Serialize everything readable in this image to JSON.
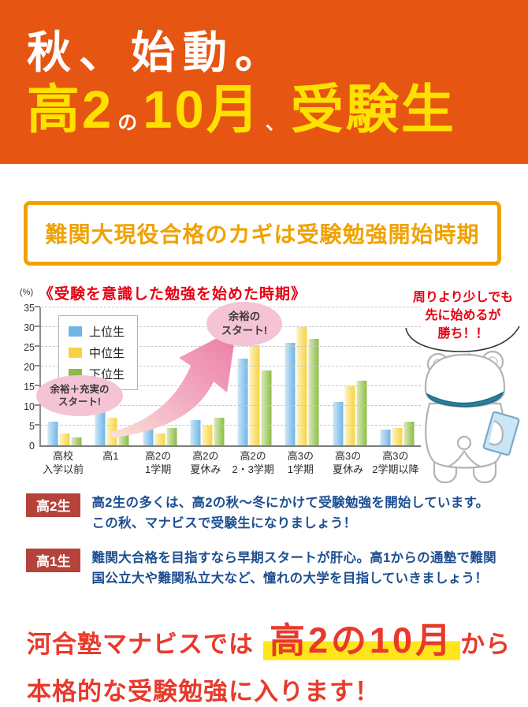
{
  "header": {
    "line1": "秋、始動。",
    "line2": {
      "p1": "高2",
      "p2": "の",
      "p3": "10月",
      "p4": "、",
      "p5": "受験生"
    },
    "bg_color": "#E75512",
    "accent_yellow": "#FFE100"
  },
  "banner": {
    "text": "難関大現役合格のカギは受験勉強開始時期",
    "color": "#F0A202"
  },
  "chart_data": {
    "type": "bar",
    "title": "《受験を意識した勉強を始めた時期》",
    "unit_label": "(%)",
    "categories": [
      "高校\n入学以前",
      "高1",
      "高2の\n1学期",
      "高2の\n夏休み",
      "高2の\n2・3学期",
      "高3の\n1学期",
      "高3の\n夏休み",
      "高3の\n2学期以降"
    ],
    "series": [
      {
        "name": "上位生",
        "color": "#6FB5E6",
        "color_light": "#CFE7F7",
        "values": [
          6,
          9,
          5.5,
          6.5,
          22,
          26,
          11,
          4
        ]
      },
      {
        "name": "中位生",
        "color": "#F7D344",
        "color_light": "#FDF3C1",
        "values": [
          3,
          7,
          3,
          5,
          25.5,
          30,
          15,
          4.5
        ]
      },
      {
        "name": "下位生",
        "color": "#8CBC47",
        "color_light": "#DCEABC",
        "values": [
          2,
          3,
          4.5,
          7,
          19,
          27,
          16.5,
          6
        ]
      }
    ],
    "ylim": [
      0,
      35
    ],
    "ytick_step": 5,
    "grid": "horizontal-dashed",
    "legend_position": "top-left-inside",
    "annotations": [
      "余裕＋充実の\nスタート!",
      "余裕の\nスタート!"
    ],
    "arrow_color": "#EC7AA4"
  },
  "mascot": {
    "speech": "周りより少しでも\n先に始めるが\n勝ち！！",
    "collar_color": "#2B7F9E"
  },
  "sections": {
    "k2": {
      "label": "高2生",
      "text": "高2生の多くは、高2の秋～冬にかけて受験勉強を開始しています。\nこの秋、マナビスで受験生になりましょう！"
    },
    "k1": {
      "label": "高1生",
      "text": "難関大合格を目指すなら早期スタートが肝心。高1からの通塾で難関\n国公立大や難関私立大など、憧れの大学を目指していきましょう！"
    }
  },
  "footer": {
    "part1": "河合塾マナビスでは",
    "highlight": "高2の10月",
    "part2": "から",
    "line2": "本格的な受験勉強に入ります！",
    "red": "#E8392B",
    "highlight_yellow": "#FFE61A"
  }
}
